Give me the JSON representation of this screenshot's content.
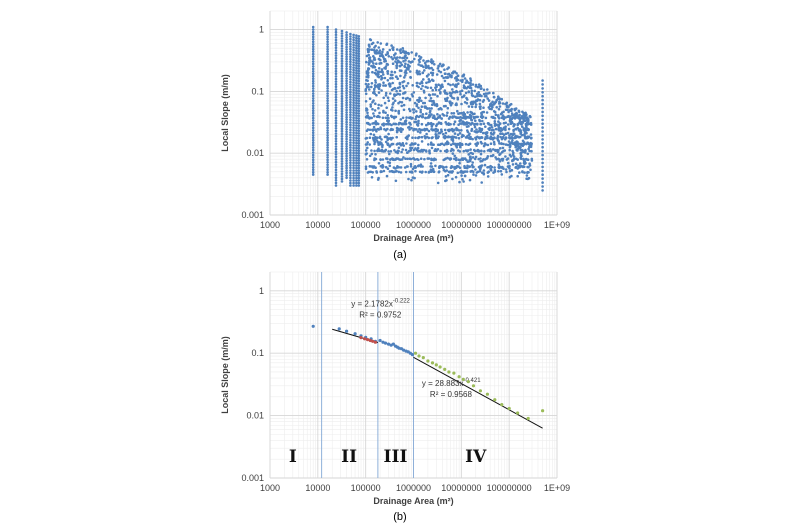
{
  "chart_data": [
    {
      "type": "scatter",
      "caption": "(a)",
      "xlabel": "Drainage Area (m²)",
      "ylabel": "Local Slope (m/m)",
      "xscale": "log",
      "yscale": "log",
      "xlim": [
        1000,
        1000000000
      ],
      "ylim": [
        0.001,
        2
      ],
      "x_tick_labels": [
        "1000",
        "10000",
        "100000",
        "1000000",
        "10000000",
        "100000000",
        "1E+09"
      ],
      "y_tick_labels": [
        "0.001",
        "0.01",
        "0.1",
        "1"
      ],
      "grid": true,
      "marker_color": "#4f81bd",
      "point_cloud": {
        "columns": [
          {
            "x": 8000,
            "y_range": [
              0.0045,
              1.1
            ]
          },
          {
            "x": 16000,
            "y_range": [
              0.0045,
              1.1
            ]
          },
          {
            "x": 24000,
            "y_range": [
              0.003,
              1.0
            ]
          },
          {
            "x": 32000,
            "y_range": [
              0.0035,
              0.95
            ]
          },
          {
            "x": 40000,
            "y_range": [
              0.004,
              0.9
            ]
          },
          {
            "x": 48000,
            "y_range": [
              0.003,
              0.85
            ]
          },
          {
            "x": 56000,
            "y_range": [
              0.003,
              0.82
            ]
          },
          {
            "x": 64000,
            "y_range": [
              0.003,
              0.8
            ]
          },
          {
            "x": 72000,
            "y_range": [
              0.003,
              0.78
            ]
          },
          {
            "x": 500000000,
            "y_range": [
              0.0025,
              0.15
            ]
          }
        ],
        "upper_envelope": [
          [
            100000,
            0.75
          ],
          [
            1000000,
            0.45
          ],
          [
            10000000,
            0.2
          ],
          [
            100000000,
            0.065
          ],
          [
            300000000,
            0.04
          ]
        ],
        "lower_envelope": [
          [
            100000,
            0.0035
          ],
          [
            1000000,
            0.003
          ],
          [
            10000000,
            0.003
          ],
          [
            100000000,
            0.0035
          ],
          [
            300000000,
            0.0035
          ]
        ],
        "horizontal_bands_y": [
          0.005,
          0.006,
          0.008,
          0.011,
          0.014,
          0.018,
          0.024,
          0.03,
          0.038
        ]
      }
    },
    {
      "type": "scatter",
      "caption": "(b)",
      "xlabel": "Drainage Area (m²)",
      "ylabel": "Local Slope (m/m)",
      "xscale": "log",
      "yscale": "log",
      "xlim": [
        1000,
        1000000000
      ],
      "ylim": [
        0.001,
        2
      ],
      "x_tick_labels": [
        "1000",
        "10000",
        "100000",
        "1000000",
        "10000000",
        "100000000",
        "1E+09"
      ],
      "y_tick_labels": [
        "0.001",
        "0.01",
        "0.1",
        "1"
      ],
      "grid": true,
      "region_boundaries_x": [
        12000,
        180000,
        1000000
      ],
      "region_labels": [
        "I",
        "II",
        "III",
        "IV"
      ],
      "region_label_x": [
        3000,
        45000,
        420000,
        20000000
      ],
      "series": [
        {
          "marker": "#4f81bd",
          "x": [
            8000,
            28000,
            40000,
            60000,
            80000,
            100000,
            130000,
            160000,
            200000,
            230000,
            260000,
            300000,
            340000,
            380000,
            420000,
            460000,
            500000,
            560000,
            620000,
            700000,
            780000,
            860000,
            950000
          ],
          "y": [
            0.27,
            0.245,
            0.225,
            0.205,
            0.19,
            0.18,
            0.17,
            0.155,
            0.16,
            0.15,
            0.145,
            0.14,
            0.135,
            0.14,
            0.13,
            0.125,
            0.12,
            0.118,
            0.112,
            0.108,
            0.105,
            0.1,
            0.095
          ]
        },
        {
          "marker": "#c0504d",
          "x": [
            80000,
            95000,
            110000,
            125000,
            140000,
            160000
          ],
          "y": [
            0.178,
            0.17,
            0.165,
            0.16,
            0.155,
            0.15
          ]
        },
        {
          "marker": "#9bbb59",
          "x": [
            1100000,
            1300000,
            1600000,
            2000000,
            2500000,
            3000000,
            3600000,
            4500000,
            5500000,
            7000000,
            9000000,
            11000000,
            14000000,
            18000000,
            25000000,
            35000000,
            50000000,
            70000000,
            100000000,
            150000000,
            250000000,
            500000000
          ],
          "y": [
            0.1,
            0.09,
            0.085,
            0.075,
            0.07,
            0.065,
            0.06,
            0.055,
            0.05,
            0.048,
            0.042,
            0.038,
            0.035,
            0.03,
            0.025,
            0.022,
            0.018,
            0.015,
            0.013,
            0.011,
            0.009,
            0.012
          ]
        }
      ],
      "fits": [
        {
          "a": 2.1782,
          "b": -0.222,
          "x_range": [
            20000,
            180000
          ],
          "equation": "y = 2.1782x",
          "exponent": "-0.222",
          "r2": "R² = 0.9752",
          "eq_label_x": 50000,
          "eq_label_y": 0.56
        },
        {
          "a": 28.883,
          "b": -0.421,
          "x_range": [
            1000000,
            500000000
          ],
          "equation": "y = 28.883x",
          "exponent": "-0.421",
          "r2": "R² = 0.9568",
          "eq_label_x": 1500000,
          "eq_label_y": 0.03
        }
      ]
    }
  ]
}
